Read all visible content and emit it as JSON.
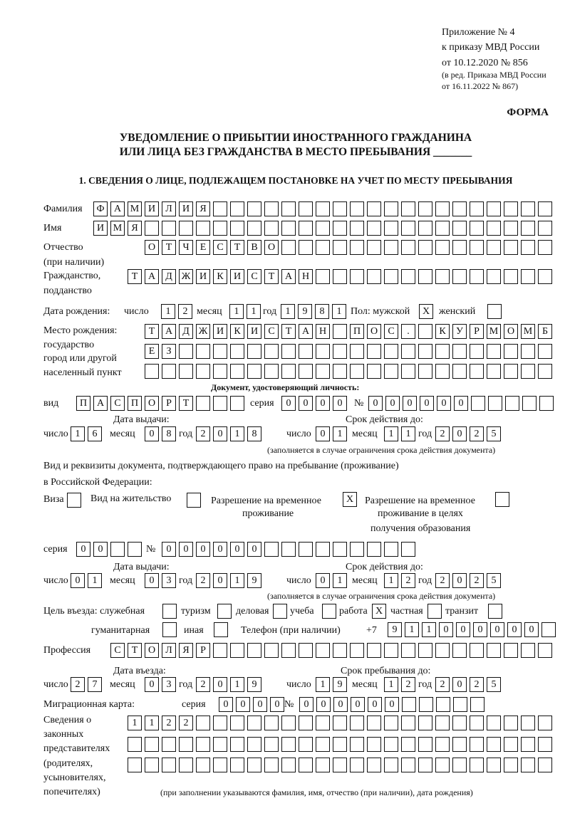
{
  "header": {
    "appendix_line1": "Приложение № 4",
    "appendix_line2": "к приказу МВД России",
    "appendix_line3": "от 10.12.2020 № 856",
    "amend_line1": "(в ред. Приказа МВД России",
    "amend_line2": "от 16.11.2022 № 867)",
    "form_label": "ФОРМА",
    "title_line1": "УВЕДОМЛЕНИЕ О ПРИБЫТИИ ИНОСТРАННОГО ГРАЖДАНИНА",
    "title_line2": "ИЛИ ЛИЦА БЕЗ ГРАЖДАНСТВА В МЕСТО ПРЕБЫВАНИЯ _______",
    "section1": "1. СВЕДЕНИЯ О ЛИЦЕ, ПОДЛЕЖАЩЕМ ПОСТАНОВКЕ НА УЧЕТ ПО МЕСТУ ПРЕБЫВАНИЯ"
  },
  "labels": {
    "surname": "Фамилия",
    "name": "Имя",
    "patronymic": "Отчество",
    "patronymic_note": "(при наличии)",
    "citizenship1": "Гражданство,",
    "citizenship2": "подданство",
    "birth_date": "Дата рождения:",
    "day": "число",
    "month": "месяц",
    "year": "год",
    "sex": "Пол: мужской",
    "female": "женский",
    "birthplace1": "Место рождения:",
    "birthplace2": "государство",
    "birthplace3": "город или другой",
    "birthplace4": "населенный пункт",
    "id_doc": "Документ, удостоверяющий личность:",
    "kind": "вид",
    "series": "серия",
    "number": "№",
    "issue_date": "Дата выдачи:",
    "valid_until": "Срок действия до:",
    "validity_note": "(заполняется в случае ограничения срока действия документа)",
    "stay_doc1": "Вид и реквизиты документа, подтверждающего право на пребывание (проживание)",
    "stay_doc2": "в Российской Федерации:",
    "visa": "Виза",
    "residence": "Вид на жительство",
    "temp_res1": "Разрешение на временное",
    "temp_res2": "проживание",
    "temp_edu1": "Разрешение на временное",
    "temp_edu2": "проживание в целях",
    "temp_edu3": "получения образования",
    "purpose": "Цель въезда: служебная",
    "tourism": "туризм",
    "business": "деловая",
    "study": "учеба",
    "work": "работа",
    "private": "частная",
    "transit": "транзит",
    "humanitarian": "гуманитарная",
    "other": "иная",
    "phone": "Телефон (при наличии)",
    "phone_prefix": "+7",
    "profession": "Профессия",
    "entry_date": "Дата въезда:",
    "stay_until": "Срок пребывания до:",
    "migration_card": "Миграционная карта:",
    "reps1": "Сведения о",
    "reps2": "законных",
    "reps3": "представителях",
    "reps4": "(родителях,",
    "reps5": "усыновителях,",
    "reps6": "попечителях)",
    "reps_note": "(при заполнении указываются фамилия, имя, отчество (при наличии), дата рождения)"
  },
  "fields": {
    "surname": [
      "Ф",
      "А",
      "М",
      "И",
      "Л",
      "И",
      "Я"
    ],
    "name": [
      "И",
      "М",
      "Я"
    ],
    "patronymic": [
      "О",
      "Т",
      "Ч",
      "Е",
      "С",
      "Т",
      "В",
      "О"
    ],
    "citizenship": [
      "Т",
      "А",
      "Д",
      "Ж",
      "И",
      "К",
      "И",
      "С",
      "Т",
      "А",
      "Н"
    ],
    "birth_day": [
      "1",
      "2"
    ],
    "birth_month": [
      "1",
      "1"
    ],
    "birth_year": [
      "1",
      "9",
      "8",
      "1"
    ],
    "sex_male": [
      "X"
    ],
    "sex_female": [
      ""
    ],
    "birthplace_1": [
      "Т",
      "А",
      "Д",
      "Ж",
      "И",
      "К",
      "И",
      "С",
      "Т",
      "А",
      "Н",
      "",
      "П",
      "О",
      "С",
      ".",
      "",
      "К",
      "У",
      "Р",
      "М",
      "О",
      "М",
      "Б"
    ],
    "birthplace_2": [
      "Е",
      "З"
    ],
    "birthplace_3": [],
    "id_kind": [
      "П",
      "А",
      "С",
      "П",
      "О",
      "Р",
      "Т"
    ],
    "id_series": [
      "0",
      "0",
      "0",
      "0"
    ],
    "id_number": [
      "0",
      "0",
      "0",
      "0",
      "0",
      "0"
    ],
    "id_issue_day": [
      "1",
      "6"
    ],
    "id_issue_month": [
      "0",
      "8"
    ],
    "id_issue_year": [
      "2",
      "0",
      "1",
      "8"
    ],
    "id_valid_day": [
      "0",
      "1"
    ],
    "id_valid_month": [
      "1",
      "1"
    ],
    "id_valid_year": [
      "2",
      "0",
      "2",
      "5"
    ],
    "doc_visa": [
      ""
    ],
    "doc_residence": [
      ""
    ],
    "doc_temp_res": [
      "X"
    ],
    "doc_temp_edu": [
      ""
    ],
    "doc_series": [
      "0",
      "0"
    ],
    "doc_number": [
      "0",
      "0",
      "0",
      "0",
      "0",
      "0"
    ],
    "doc_issue_day": [
      "0",
      "1"
    ],
    "doc_issue_month": [
      "0",
      "3"
    ],
    "doc_issue_year": [
      "2",
      "0",
      "1",
      "9"
    ],
    "doc_valid_day": [
      "0",
      "1"
    ],
    "doc_valid_month": [
      "1",
      "2"
    ],
    "doc_valid_year": [
      "2",
      "0",
      "2",
      "5"
    ],
    "p_service": [
      ""
    ],
    "p_tourism": [
      ""
    ],
    "p_business": [
      ""
    ],
    "p_study": [
      ""
    ],
    "p_work": [
      "X"
    ],
    "p_private": [
      ""
    ],
    "p_transit": [
      ""
    ],
    "p_humanitarian": [
      ""
    ],
    "p_other": [
      ""
    ],
    "phone": [
      "9",
      "1",
      "1",
      "0",
      "0",
      "0",
      "0",
      "0",
      "0"
    ],
    "profession": [
      "С",
      "Т",
      "О",
      "Л",
      "Я",
      "Р"
    ],
    "entry_day": [
      "2",
      "7"
    ],
    "entry_month": [
      "0",
      "3"
    ],
    "entry_year": [
      "2",
      "0",
      "1",
      "9"
    ],
    "stay_day": [
      "1",
      "9"
    ],
    "stay_month": [
      "1",
      "2"
    ],
    "stay_year": [
      "2",
      "0",
      "2",
      "5"
    ],
    "mc_series": [
      "0",
      "0",
      "0",
      "0"
    ],
    "mc_number": [
      "0",
      "0",
      "0",
      "0",
      "0",
      "0"
    ],
    "reps_1": [
      "1",
      "1",
      "2",
      "2"
    ],
    "reps_2": [],
    "reps_3": []
  }
}
